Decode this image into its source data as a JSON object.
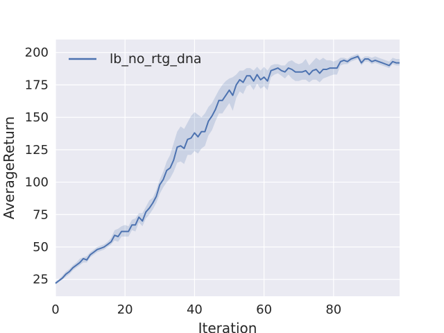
{
  "chart_data": {
    "type": "line",
    "xlabel": "Iteration",
    "ylabel": "AverageReturn",
    "xlim": [
      0,
      99
    ],
    "ylim": [
      12,
      210
    ],
    "xticks": [
      0,
      20,
      40,
      60,
      80
    ],
    "yticks": [
      25,
      50,
      75,
      100,
      125,
      150,
      175,
      200
    ],
    "grid": true,
    "legend_position": "top-left",
    "colors": {
      "background": "#EAEAF2",
      "grid": "#FFFFFF",
      "line": "#4C72B0",
      "band": "#4C72B0"
    },
    "series": [
      {
        "name": "lb_no_rtg_dna",
        "x": [
          0,
          1,
          2,
          3,
          4,
          5,
          6,
          7,
          8,
          9,
          10,
          11,
          12,
          13,
          14,
          15,
          16,
          17,
          18,
          19,
          20,
          21,
          22,
          23,
          24,
          25,
          26,
          27,
          28,
          29,
          30,
          31,
          32,
          33,
          34,
          35,
          36,
          37,
          38,
          39,
          40,
          41,
          42,
          43,
          44,
          45,
          46,
          47,
          48,
          49,
          50,
          51,
          52,
          53,
          54,
          55,
          56,
          57,
          58,
          59,
          60,
          61,
          62,
          63,
          64,
          65,
          66,
          67,
          68,
          69,
          70,
          71,
          72,
          73,
          74,
          75,
          76,
          77,
          78,
          79,
          80,
          81,
          82,
          83,
          84,
          85,
          86,
          87,
          88,
          89,
          90,
          91,
          92,
          93,
          94,
          95,
          96,
          97,
          98,
          99
        ],
        "mean": [
          22,
          24,
          26,
          29,
          31,
          34,
          36,
          38,
          41,
          40,
          44,
          46,
          48,
          49,
          50,
          52,
          54,
          59,
          58,
          62,
          62,
          62,
          67,
          67,
          73,
          70,
          77,
          80,
          84,
          89,
          98,
          102,
          109,
          111,
          117,
          127,
          128,
          126,
          133,
          134,
          138,
          135,
          139,
          139,
          147,
          151,
          156,
          163,
          163,
          167,
          171,
          167,
          175,
          179,
          177,
          182,
          182,
          178,
          183,
          179,
          181,
          178,
          186,
          187,
          188,
          186,
          185,
          188,
          187,
          185,
          185,
          185,
          186,
          183,
          186,
          187,
          184,
          187,
          187,
          188,
          188,
          188,
          193,
          194,
          193,
          195,
          196,
          197,
          192,
          195,
          195,
          193,
          194,
          193,
          192,
          191,
          190,
          193,
          192,
          192
        ],
        "upper": [
          23,
          25,
          28,
          31,
          33,
          36,
          38,
          41,
          42,
          43,
          46,
          48,
          50,
          51,
          52,
          54,
          57,
          63,
          64,
          66,
          67,
          66,
          71,
          72,
          76,
          76,
          81,
          86,
          88,
          94,
          102,
          108,
          116,
          121,
          130,
          139,
          143,
          141,
          146,
          151,
          154,
          152,
          150,
          153,
          158,
          161,
          166,
          171,
          175,
          178,
          180,
          181,
          183,
          186,
          186,
          188,
          188,
          186,
          189,
          186,
          189,
          186,
          190,
          191,
          191,
          190,
          190,
          193,
          194,
          192,
          191,
          192,
          195,
          190,
          193,
          196,
          194,
          196,
          194,
          194,
          193,
          194,
          196,
          196,
          195,
          197,
          198,
          199,
          195,
          197,
          197,
          196,
          197,
          196,
          195,
          194,
          193,
          196,
          195,
          195
        ],
        "lower": [
          21,
          23,
          25,
          27,
          29,
          32,
          34,
          36,
          38,
          38,
          42,
          44,
          46,
          47,
          48,
          50,
          52,
          55,
          54,
          58,
          58,
          58,
          63,
          62,
          69,
          66,
          72,
          75,
          79,
          84,
          91,
          96,
          100,
          103,
          108,
          115,
          116,
          114,
          121,
          121,
          124,
          122,
          126,
          128,
          136,
          140,
          147,
          153,
          153,
          157,
          161,
          155,
          165,
          170,
          168,
          174,
          175,
          171,
          176,
          172,
          174,
          171,
          181,
          183,
          184,
          182,
          180,
          183,
          180,
          178,
          178,
          179,
          179,
          177,
          179,
          179,
          177,
          180,
          181,
          182,
          183,
          183,
          190,
          191,
          191,
          193,
          194,
          195,
          190,
          193,
          193,
          191,
          192,
          191,
          190,
          189,
          188,
          191,
          190,
          190
        ]
      }
    ]
  }
}
